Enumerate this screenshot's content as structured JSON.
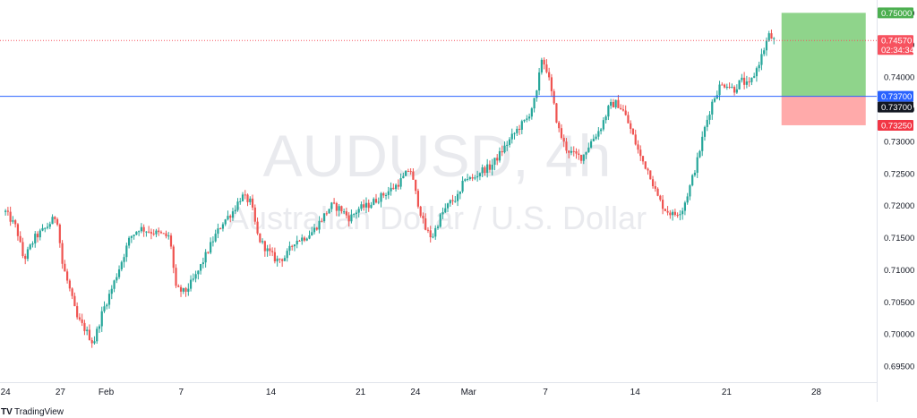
{
  "chart_data": {
    "type": "candlestick",
    "watermark": {
      "symbol": "AUDUSD, 4h",
      "description": "Australian Dollar / U.S. Dollar"
    },
    "y_axis": {
      "min": 0.6925,
      "max": 0.752,
      "ticks": [
        "0.69500",
        "0.70000",
        "0.70500",
        "0.71000",
        "0.71500",
        "0.72000",
        "0.72500",
        "0.73000",
        "0.73500",
        "0.74000",
        "0.74500",
        "0.75000"
      ]
    },
    "x_axis": {
      "ticks": [
        {
          "label": "24",
          "pos": 0.0
        },
        {
          "label": "27",
          "pos": 3.0
        },
        {
          "label": "Feb",
          "pos": 5.5
        },
        {
          "label": "7",
          "pos": 9.6
        },
        {
          "label": "14",
          "pos": 14.5
        },
        {
          "label": "21",
          "pos": 19.4
        },
        {
          "label": "24",
          "pos": 22.4
        },
        {
          "label": "Mar",
          "pos": 25.3
        },
        {
          "label": "7",
          "pos": 29.5
        },
        {
          "label": "14",
          "pos": 34.4
        },
        {
          "label": "21",
          "pos": 39.4
        },
        {
          "label": "28",
          "pos": 44.3
        }
      ],
      "range": [
        -0.3,
        47.6
      ]
    },
    "path": [
      [
        0.0,
        0.719
      ],
      [
        0.6,
        0.7165
      ],
      [
        1.0,
        0.7115
      ],
      [
        1.6,
        0.715
      ],
      [
        2.2,
        0.7165
      ],
      [
        2.8,
        0.7185
      ],
      [
        3.1,
        0.711
      ],
      [
        3.5,
        0.707
      ],
      [
        3.9,
        0.7025
      ],
      [
        4.4,
        0.7005
      ],
      [
        4.8,
        0.6985
      ],
      [
        5.3,
        0.7035
      ],
      [
        5.8,
        0.707
      ],
      [
        6.3,
        0.711
      ],
      [
        6.8,
        0.715
      ],
      [
        7.3,
        0.7165
      ],
      [
        7.9,
        0.716
      ],
      [
        8.5,
        0.7155
      ],
      [
        9.0,
        0.715
      ],
      [
        9.3,
        0.707
      ],
      [
        9.8,
        0.7065
      ],
      [
        10.4,
        0.709
      ],
      [
        10.9,
        0.712
      ],
      [
        11.4,
        0.715
      ],
      [
        11.9,
        0.7175
      ],
      [
        12.4,
        0.719
      ],
      [
        12.9,
        0.7215
      ],
      [
        13.4,
        0.7205
      ],
      [
        13.8,
        0.715
      ],
      [
        14.3,
        0.713
      ],
      [
        14.8,
        0.7115
      ],
      [
        15.3,
        0.712
      ],
      [
        15.8,
        0.7145
      ],
      [
        16.3,
        0.715
      ],
      [
        16.8,
        0.716
      ],
      [
        17.3,
        0.718
      ],
      [
        17.8,
        0.72
      ],
      [
        18.3,
        0.7195
      ],
      [
        18.8,
        0.718
      ],
      [
        19.3,
        0.7195
      ],
      [
        19.8,
        0.72
      ],
      [
        20.3,
        0.721
      ],
      [
        20.8,
        0.722
      ],
      [
        21.3,
        0.723
      ],
      [
        21.8,
        0.7245
      ],
      [
        22.1,
        0.726
      ],
      [
        22.4,
        0.722
      ],
      [
        22.9,
        0.7165
      ],
      [
        23.3,
        0.715
      ],
      [
        23.8,
        0.7185
      ],
      [
        24.3,
        0.7205
      ],
      [
        24.8,
        0.7215
      ],
      [
        25.1,
        0.7245
      ],
      [
        25.5,
        0.724
      ],
      [
        26.0,
        0.7255
      ],
      [
        26.5,
        0.726
      ],
      [
        27.0,
        0.728
      ],
      [
        27.5,
        0.73
      ],
      [
        28.0,
        0.732
      ],
      [
        28.5,
        0.7335
      ],
      [
        29.0,
        0.737
      ],
      [
        29.3,
        0.743
      ],
      [
        29.6,
        0.741
      ],
      [
        29.9,
        0.7365
      ],
      [
        30.2,
        0.732
      ],
      [
        30.6,
        0.729
      ],
      [
        31.0,
        0.728
      ],
      [
        31.5,
        0.7275
      ],
      [
        32.0,
        0.73
      ],
      [
        32.5,
        0.732
      ],
      [
        33.0,
        0.7355
      ],
      [
        33.4,
        0.736
      ],
      [
        33.8,
        0.7345
      ],
      [
        34.2,
        0.7315
      ],
      [
        34.7,
        0.7275
      ],
      [
        35.2,
        0.725
      ],
      [
        35.6,
        0.7215
      ],
      [
        36.0,
        0.7195
      ],
      [
        36.5,
        0.7185
      ],
      [
        37.0,
        0.7195
      ],
      [
        37.4,
        0.723
      ],
      [
        37.8,
        0.727
      ],
      [
        38.2,
        0.732
      ],
      [
        38.6,
        0.736
      ],
      [
        39.0,
        0.7385
      ],
      [
        39.4,
        0.739
      ],
      [
        39.8,
        0.738
      ],
      [
        40.2,
        0.7395
      ],
      [
        40.6,
        0.7385
      ],
      [
        41.0,
        0.741
      ],
      [
        41.4,
        0.744
      ],
      [
        41.7,
        0.7465
      ],
      [
        42.0,
        0.7457
      ]
    ],
    "levels": [
      {
        "name": "take-profit",
        "price": 0.75,
        "label": "0.75000",
        "color": "#4caf50"
      },
      {
        "name": "current-price",
        "price": 0.7457,
        "label": "0.74570",
        "countdown": "02:34:34",
        "color": "#f7525f"
      },
      {
        "name": "entry",
        "price": 0.737,
        "label": "0.73700",
        "color": "#2962ff"
      },
      {
        "name": "crosshair",
        "price": 0.737,
        "label": "0.73700",
        "color": "#131722"
      },
      {
        "name": "stop-loss",
        "price": 0.7325,
        "label": "0.73250",
        "color": "#f23645"
      }
    ],
    "position": {
      "type": "long",
      "entry": 0.737,
      "take_profit": 0.75,
      "stop_loss": 0.7325
    },
    "colors": {
      "up": "#26a69a",
      "down": "#ef5350",
      "profit_zone": "#8fd48b",
      "loss_zone": "#ffaaaa"
    }
  },
  "footer": {
    "brand": "TradingView",
    "logo": "TV"
  }
}
